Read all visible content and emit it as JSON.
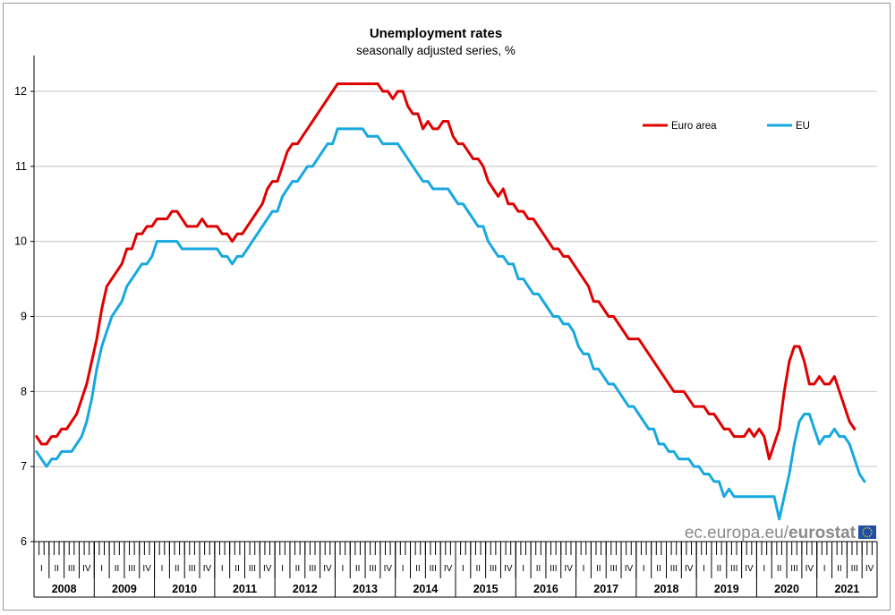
{
  "chart_data": {
    "type": "line",
    "title": "Unemployment rates",
    "subtitle": "seasonally adjusted series, %",
    "ylim": [
      6,
      12.5
    ],
    "yticks": [
      "6",
      "7",
      "8",
      "9",
      "10",
      "11",
      "12"
    ],
    "grid": true,
    "legend_position": "top-right",
    "x_quarter_labels": [
      "I",
      "II",
      "III",
      "IV"
    ],
    "years": [
      "2008",
      "2009",
      "2010",
      "2011",
      "2012",
      "2013",
      "2014",
      "2015",
      "2016",
      "2017",
      "2018",
      "2019",
      "2020",
      "2021"
    ],
    "x_start": "2008-01",
    "frequency": "monthly",
    "series": [
      {
        "name": "Euro area",
        "color": "#e00000",
        "values": [
          7.4,
          7.3,
          7.3,
          7.4,
          7.4,
          7.5,
          7.5,
          7.6,
          7.7,
          7.9,
          8.1,
          8.4,
          8.7,
          9.1,
          9.4,
          9.5,
          9.6,
          9.7,
          9.9,
          9.9,
          10.1,
          10.1,
          10.2,
          10.2,
          10.3,
          10.3,
          10.3,
          10.4,
          10.4,
          10.3,
          10.2,
          10.2,
          10.2,
          10.3,
          10.2,
          10.2,
          10.2,
          10.1,
          10.1,
          10.0,
          10.1,
          10.1,
          10.2,
          10.3,
          10.4,
          10.5,
          10.7,
          10.8,
          10.8,
          11.0,
          11.2,
          11.3,
          11.3,
          11.4,
          11.5,
          11.6,
          11.7,
          11.8,
          11.9,
          12.0,
          12.1,
          12.1,
          12.1,
          12.1,
          12.1,
          12.1,
          12.1,
          12.1,
          12.1,
          12.0,
          12.0,
          11.9,
          12.0,
          12.0,
          11.8,
          11.7,
          11.7,
          11.5,
          11.6,
          11.5,
          11.5,
          11.6,
          11.6,
          11.4,
          11.3,
          11.3,
          11.2,
          11.1,
          11.1,
          11.0,
          10.8,
          10.7,
          10.6,
          10.7,
          10.5,
          10.5,
          10.4,
          10.4,
          10.3,
          10.3,
          10.2,
          10.1,
          10.0,
          9.9,
          9.9,
          9.8,
          9.8,
          9.7,
          9.6,
          9.5,
          9.4,
          9.2,
          9.2,
          9.1,
          9.0,
          9.0,
          8.9,
          8.8,
          8.7,
          8.7,
          8.7,
          8.6,
          8.5,
          8.4,
          8.3,
          8.2,
          8.1,
          8.0,
          8.0,
          8.0,
          7.9,
          7.8,
          7.8,
          7.8,
          7.7,
          7.7,
          7.6,
          7.5,
          7.5,
          7.4,
          7.4,
          7.4,
          7.5,
          7.4,
          7.5,
          7.4,
          7.1,
          7.3,
          7.5,
          8.0,
          8.4,
          8.6,
          8.6,
          8.4,
          8.1,
          8.1,
          8.2,
          8.1,
          8.1,
          8.2,
          8.0,
          7.8,
          7.6,
          7.5
        ]
      },
      {
        "name": "EU",
        "color": "#17a8e0",
        "values": [
          7.2,
          7.1,
          7.0,
          7.1,
          7.1,
          7.2,
          7.2,
          7.2,
          7.3,
          7.4,
          7.6,
          7.9,
          8.3,
          8.6,
          8.8,
          9.0,
          9.1,
          9.2,
          9.4,
          9.5,
          9.6,
          9.7,
          9.7,
          9.8,
          10.0,
          10.0,
          10.0,
          10.0,
          10.0,
          9.9,
          9.9,
          9.9,
          9.9,
          9.9,
          9.9,
          9.9,
          9.9,
          9.8,
          9.8,
          9.7,
          9.8,
          9.8,
          9.9,
          10.0,
          10.1,
          10.2,
          10.3,
          10.4,
          10.4,
          10.6,
          10.7,
          10.8,
          10.8,
          10.9,
          11.0,
          11.0,
          11.1,
          11.2,
          11.3,
          11.3,
          11.5,
          11.5,
          11.5,
          11.5,
          11.5,
          11.5,
          11.4,
          11.4,
          11.4,
          11.3,
          11.3,
          11.3,
          11.3,
          11.2,
          11.1,
          11.0,
          10.9,
          10.8,
          10.8,
          10.7,
          10.7,
          10.7,
          10.7,
          10.6,
          10.5,
          10.5,
          10.4,
          10.3,
          10.2,
          10.2,
          10.0,
          9.9,
          9.8,
          9.8,
          9.7,
          9.7,
          9.5,
          9.5,
          9.4,
          9.3,
          9.3,
          9.2,
          9.1,
          9.0,
          9.0,
          8.9,
          8.9,
          8.8,
          8.6,
          8.5,
          8.5,
          8.3,
          8.3,
          8.2,
          8.1,
          8.1,
          8.0,
          7.9,
          7.8,
          7.8,
          7.7,
          7.6,
          7.5,
          7.5,
          7.3,
          7.3,
          7.2,
          7.2,
          7.1,
          7.1,
          7.1,
          7.0,
          7.0,
          6.9,
          6.9,
          6.8,
          6.8,
          6.6,
          6.7,
          6.6,
          6.6,
          6.6,
          6.6,
          6.6,
          6.6,
          6.6,
          6.6,
          6.6,
          6.3,
          6.6,
          6.9,
          7.3,
          7.6,
          7.7,
          7.7,
          7.5,
          7.3,
          7.4,
          7.4,
          7.5,
          7.4,
          7.4,
          7.3,
          7.1,
          6.9,
          6.8
        ]
      }
    ]
  },
  "branding": {
    "site_text": "ec.europa.eu/",
    "brand_text": "eurostat",
    "flag_color": "#1f4fa8",
    "star_color": "#f5d300"
  }
}
